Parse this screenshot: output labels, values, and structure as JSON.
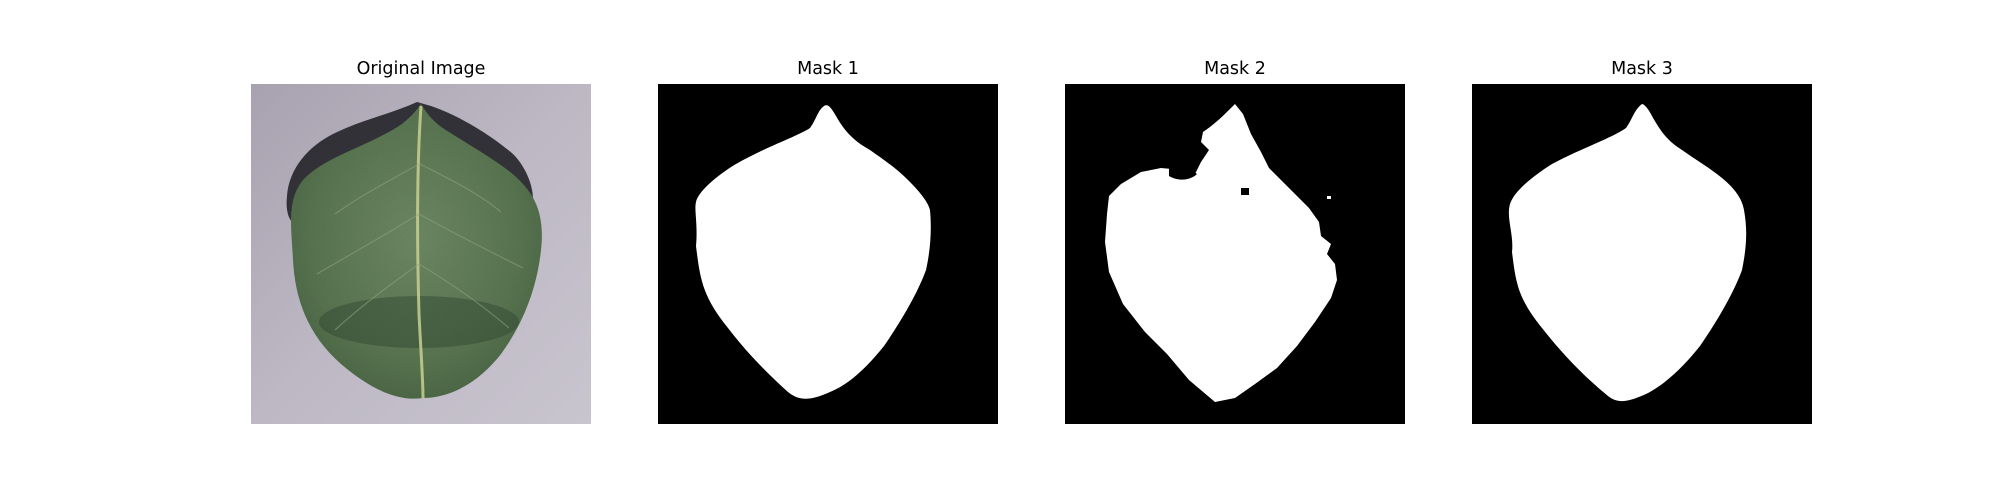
{
  "figure": {
    "panels": [
      {
        "title": "Original Image",
        "content": "photo",
        "colors": {
          "leaf": "#5d7a55",
          "background": "#bdb8c4",
          "shadow": "#26262b"
        }
      },
      {
        "title": "Mask 1",
        "content": "mask",
        "colors": {
          "foreground": "#ffffff",
          "background": "#000000"
        }
      },
      {
        "title": "Mask 2",
        "content": "mask",
        "colors": {
          "foreground": "#ffffff",
          "background": "#000000"
        }
      },
      {
        "title": "Mask 3",
        "content": "mask",
        "colors": {
          "foreground": "#ffffff",
          "background": "#000000"
        }
      }
    ]
  }
}
